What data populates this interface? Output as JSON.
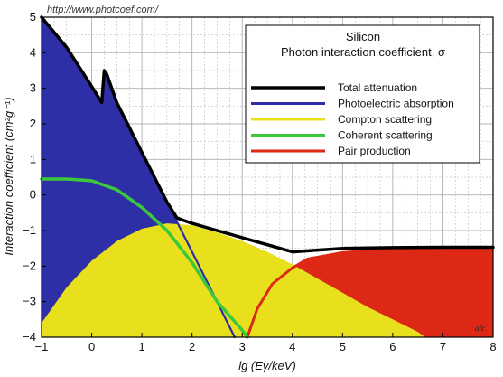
{
  "chart_data": {
    "type": "area",
    "source_url": "http://www.photcoef.com/",
    "legend_title_line1": "Silicon",
    "legend_title_line2": "Photon interaction coefficient, σ",
    "xlabel": "lg (Eγ/keV)",
    "ylabel": "Interaction coefficient  (cm²g⁻¹)",
    "xlim": [
      -1,
      8
    ],
    "ylim": [
      -4,
      5
    ],
    "x_ticks": [
      -1,
      0,
      1,
      2,
      3,
      4,
      5,
      6,
      7,
      8
    ],
    "x_tick_labels": [
      "−1",
      "0",
      "1",
      "2",
      "3",
      "4",
      "5",
      "6",
      "7",
      "8"
    ],
    "y_ticks": [
      -4,
      -3,
      -2,
      -1,
      0,
      1,
      2,
      3,
      4,
      5
    ],
    "y_tick_labels": [
      "−4",
      "−3",
      "−2",
      "−1",
      "0",
      "1",
      "2",
      "3",
      "4",
      "5"
    ],
    "grid": true,
    "legend_position": "top-right",
    "corner_tag": "alc",
    "colors": {
      "background": "#ffffff",
      "grid": "#b0b0b0",
      "photo": "#2e2ea6",
      "compton": "#e8e01c",
      "coherent": "#3cc83c",
      "pair": "#dc2814",
      "total": "#000000"
    },
    "series": [
      {
        "name": "Total attenuation",
        "color": "#000000",
        "x": [
          -1,
          -0.5,
          0,
          0.2,
          0.25,
          0.3,
          0.5,
          1.0,
          1.5,
          1.7,
          2.0,
          2.5,
          3.0,
          3.5,
          4.0,
          4.5,
          5,
          6,
          7,
          8
        ],
        "y": [
          5.0,
          4.15,
          3.05,
          2.6,
          3.5,
          3.4,
          2.6,
          1.2,
          -0.2,
          -0.65,
          -0.8,
          -1.0,
          -1.2,
          -1.4,
          -1.6,
          -1.55,
          -1.5,
          -1.48,
          -1.47,
          -1.47
        ]
      },
      {
        "name": "Photoelectric absorption",
        "color": "#2e2ea6",
        "x": [
          -1,
          -0.5,
          0,
          0.2,
          0.25,
          0.3,
          0.5,
          1.0,
          1.5,
          2.0,
          2.5,
          2.85
        ],
        "y": [
          5.0,
          4.15,
          3.05,
          2.6,
          3.5,
          3.4,
          2.6,
          1.2,
          -0.2,
          -1.6,
          -3.0,
          -4.0
        ]
      },
      {
        "name": "Compton scattering",
        "color": "#e8e01c",
        "x": [
          -1,
          -0.5,
          0,
          0.5,
          1.0,
          1.5,
          2.0,
          2.5,
          3.0,
          3.5,
          4.0,
          4.5,
          5.0,
          5.5,
          6.0,
          6.5,
          6.65
        ],
        "y": [
          -3.6,
          -2.6,
          -1.85,
          -1.3,
          -0.95,
          -0.8,
          -0.85,
          -1.05,
          -1.3,
          -1.6,
          -1.95,
          -2.35,
          -2.75,
          -3.15,
          -3.5,
          -3.85,
          -4.0
        ]
      },
      {
        "name": "Coherent scattering",
        "color": "#3cc83c",
        "x": [
          -1,
          -0.5,
          0,
          0.5,
          1.0,
          1.5,
          2.0,
          2.5,
          3.0,
          3.1
        ],
        "y": [
          0.45,
          0.45,
          0.4,
          0.15,
          -0.35,
          -1.0,
          -1.9,
          -3.0,
          -3.8,
          -4.0
        ]
      },
      {
        "name": "Pair production",
        "color": "#dc2814",
        "x": [
          3.1,
          3.3,
          3.6,
          4.0,
          4.3,
          5.0,
          6.0,
          7.0,
          8.0
        ],
        "y": [
          -4.0,
          -3.2,
          -2.5,
          -2.05,
          -1.8,
          -1.62,
          -1.52,
          -1.48,
          -1.47
        ]
      }
    ]
  }
}
